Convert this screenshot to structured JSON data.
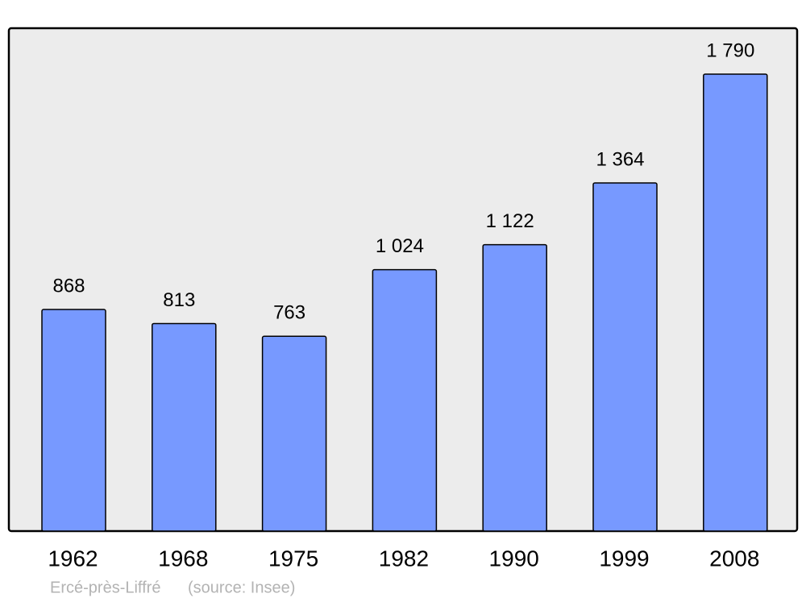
{
  "chart_data": {
    "type": "bar",
    "title": "Ercé-près-Liffré",
    "source": "(source: Insee)",
    "categories": [
      "1962",
      "1968",
      "1975",
      "1982",
      "1990",
      "1999",
      "2008"
    ],
    "values": [
      868,
      813,
      763,
      1024,
      1122,
      1364,
      1790
    ],
    "value_labels": [
      "868",
      "813",
      "763",
      "1 024",
      "1 122",
      "1 364",
      "1 790"
    ],
    "color": "#7799ff"
  }
}
